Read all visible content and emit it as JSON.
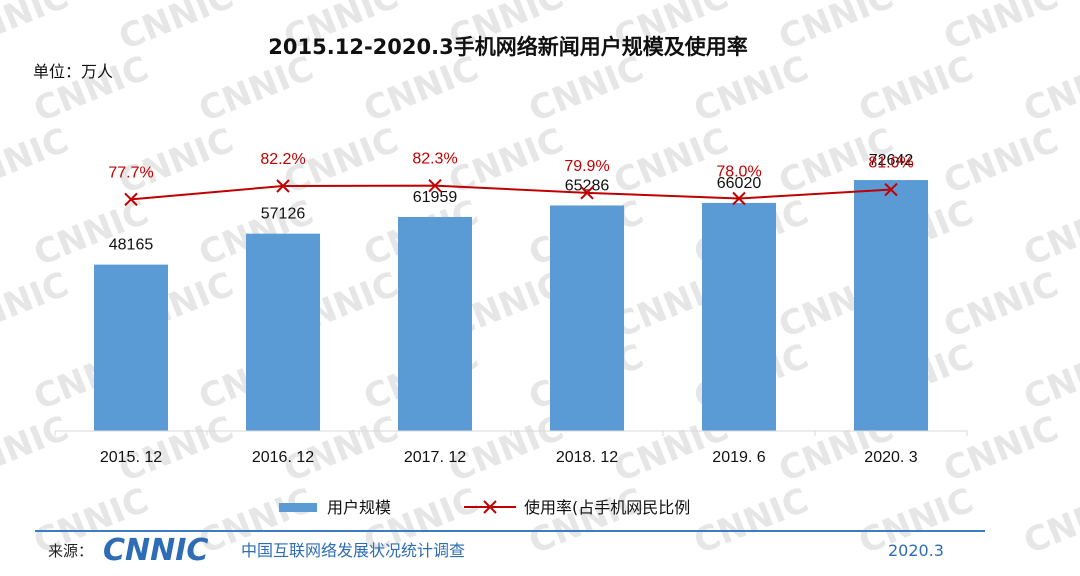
{
  "colors": {
    "bar": "#5b9bd5",
    "line": "#c00000",
    "footer_line": "#3b7cc4",
    "footer_text": "#2e6db5",
    "axis": "#d9d9d9",
    "watermark": "#e6e6e6"
  },
  "watermark_text": "CNNIC",
  "chart_data": {
    "type": "bar",
    "title": "2015.12-2020.3手机网络新闻用户规模及使用率",
    "unit_label": "单位：万人",
    "categories": [
      "2015. 12",
      "2016. 12",
      "2017. 12",
      "2018. 12",
      "2019. 6",
      "2020. 3"
    ],
    "series": [
      {
        "name": "用户规模",
        "kind": "bar",
        "values": [
          48165,
          57126,
          61959,
          65286,
          66020,
          72642
        ]
      },
      {
        "name": "使用率(占手机网民比例",
        "kind": "line",
        "values": [
          77.7,
          82.2,
          82.3,
          79.9,
          78.0,
          81.0
        ],
        "labels": [
          "77.7%",
          "82.2%",
          "82.3%",
          "79.9%",
          "78.0%",
          "81.0%"
        ]
      }
    ],
    "ylim_bar": [
      0,
      110000
    ],
    "ylim_line": [
      0,
      104
    ],
    "grid": false,
    "legend": "bottom"
  },
  "footer": {
    "source_label": "来源：",
    "logo_text": "CNNIC",
    "org_text": "中国互联网络发展状况统计调查",
    "date": "2020.3"
  }
}
